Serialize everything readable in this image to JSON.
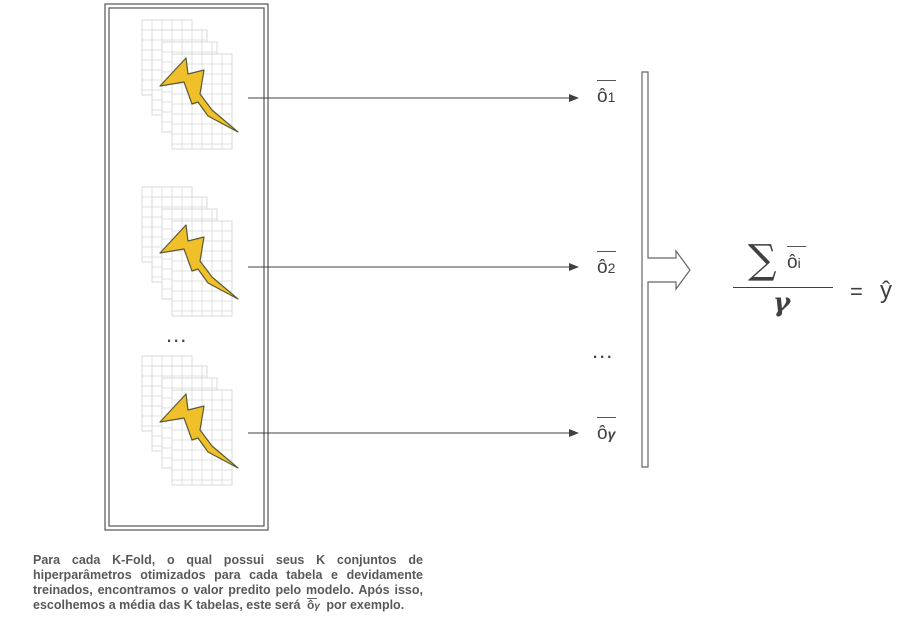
{
  "diagram": {
    "folds_ellipsis": "...",
    "outputs": [
      {
        "symbol": "ô",
        "subscript": "1"
      },
      {
        "symbol": "ô",
        "subscript": "2"
      },
      {
        "symbol": "ô",
        "subscript": "γ"
      }
    ],
    "outputs_ellipsis": "...",
    "formula": {
      "sum_symbol": "∑",
      "term_symbol": "ô",
      "term_subscript": "i",
      "denominator": "γ",
      "equals": "=",
      "result": "ŷ"
    },
    "colors": {
      "lightning": "#f0c02a",
      "lightning_outline": "#5a5a3a",
      "frame": "#555555",
      "grid": "#d9d9d9",
      "arrow": "#404040"
    },
    "icons": [
      "table-stack-icon",
      "lightning-icon",
      "arrow-icon",
      "block-arrow-icon"
    ]
  },
  "caption": {
    "text_before": "Para cada K-Fold, o qual possui seus K conjuntos de hiperparâmetros otimizados para cada tabela e devidamente treinados, encontramos o valor predito pelo modelo. Após isso, escolhemos a média das K tabelas, este será",
    "inline_symbol": "ô",
    "inline_subscript": "γ",
    "text_after": "por exemplo."
  }
}
